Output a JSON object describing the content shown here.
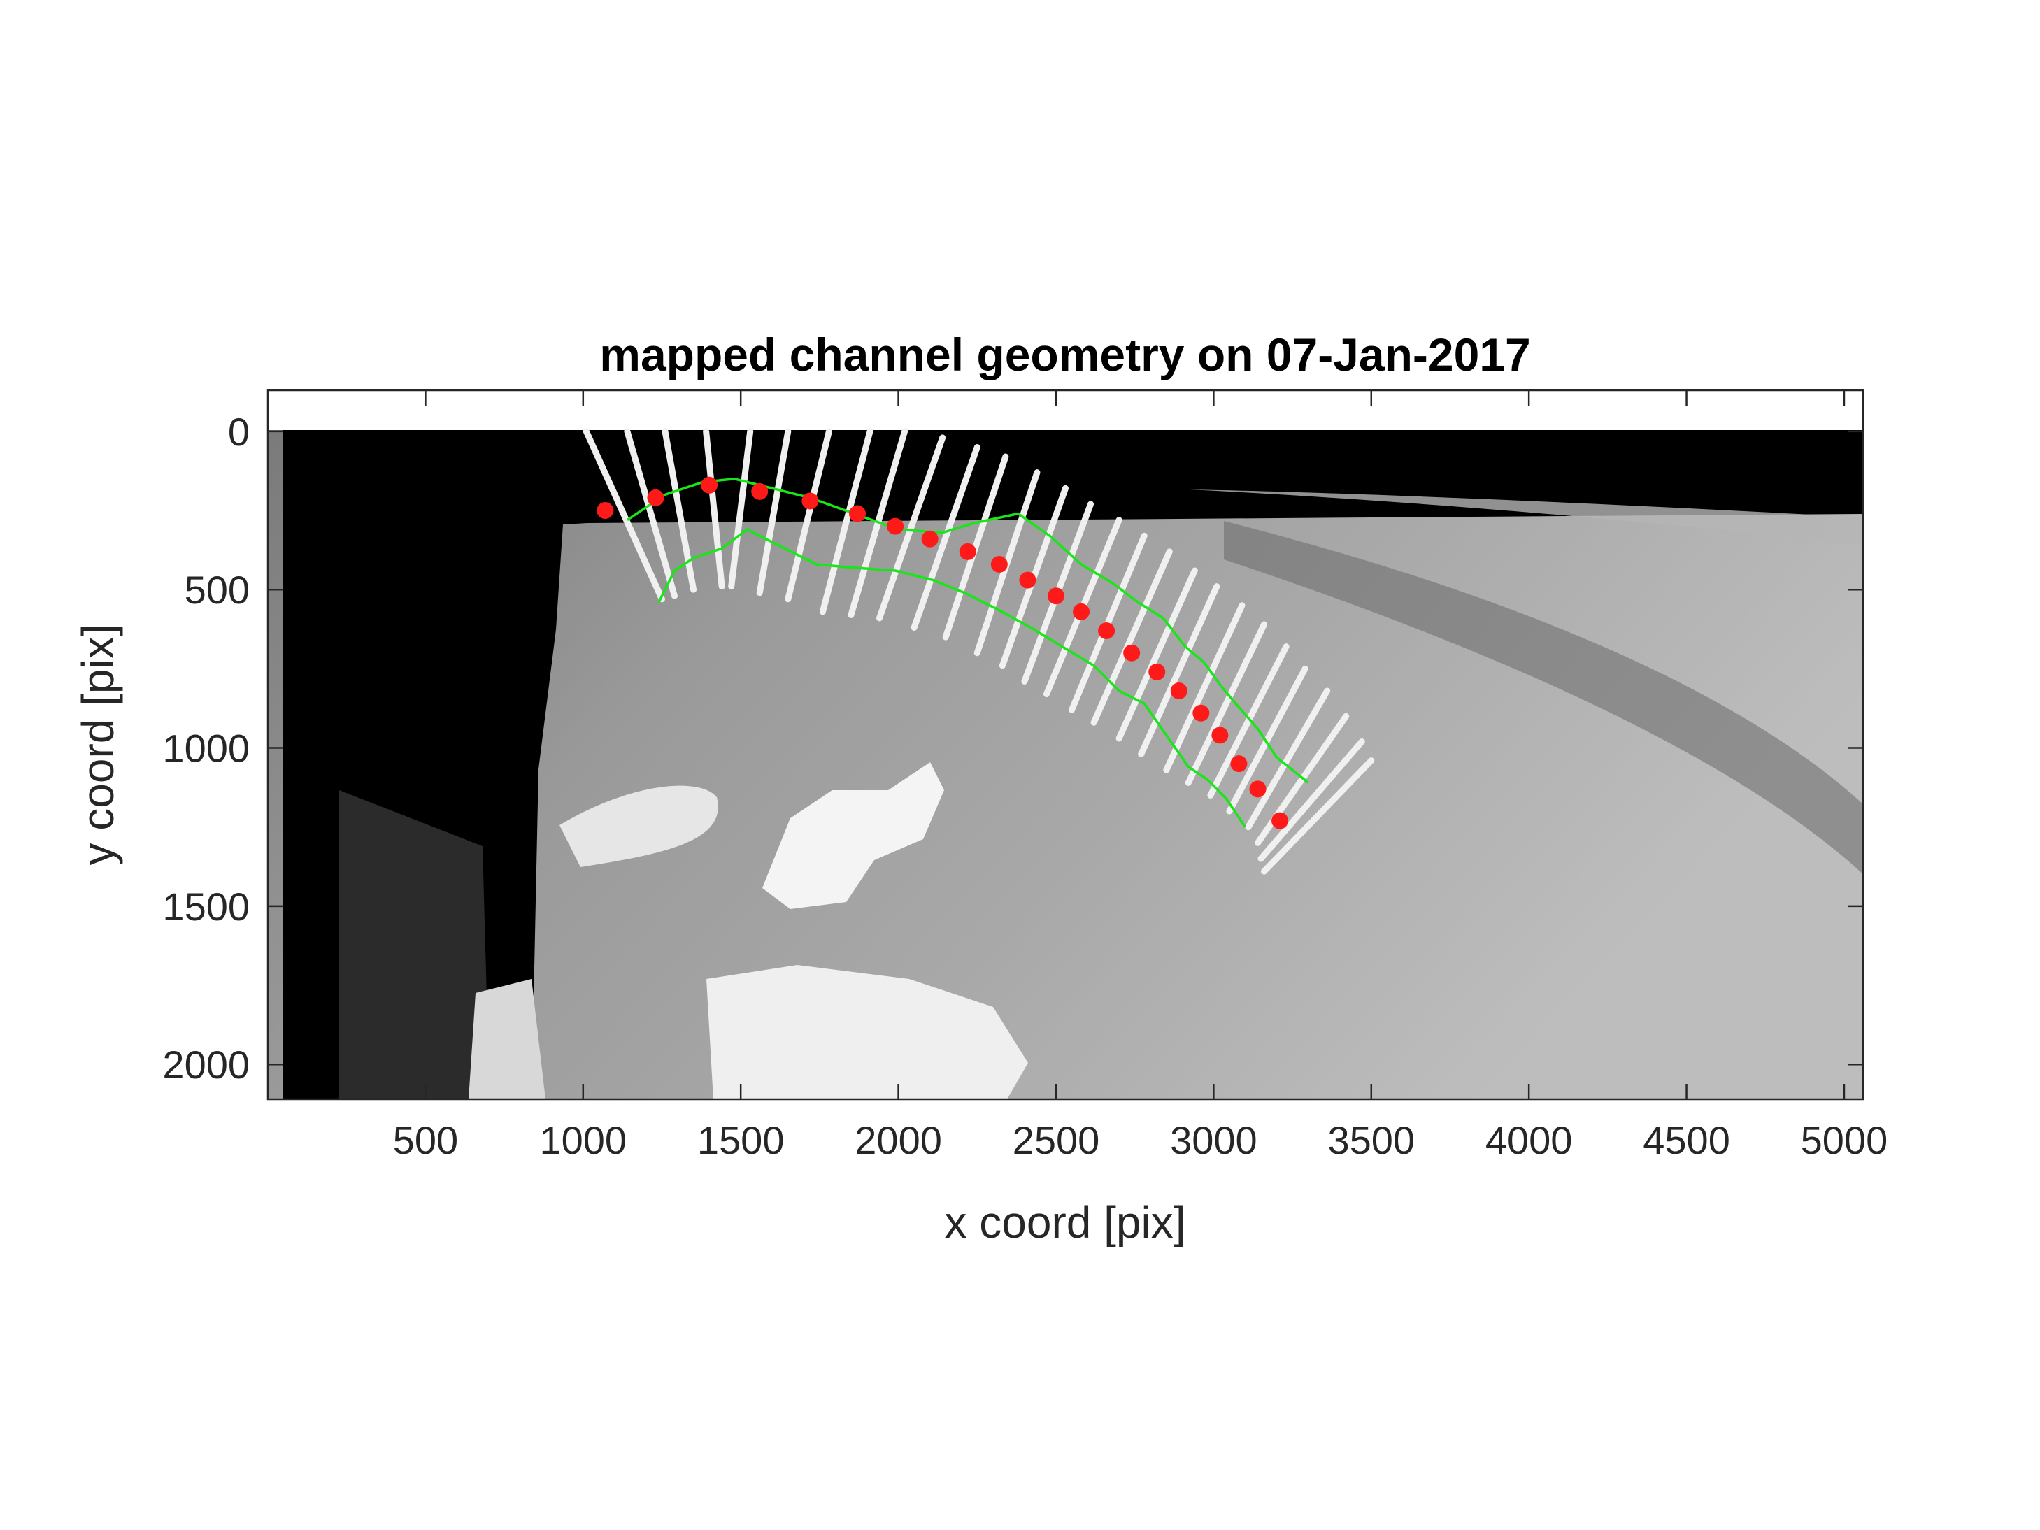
{
  "chart_data": {
    "type": "scatter",
    "title": "mapped channel geometry on 07-Jan-2017",
    "xlabel": "x coord [pix]",
    "ylabel": "y coord [pix]",
    "xlim": [
      0,
      5060
    ],
    "ylim": [
      -130,
      2110
    ],
    "y_reversed": true,
    "grid": false,
    "xticks": [
      500,
      1000,
      1500,
      2000,
      2500,
      3000,
      3500,
      4000,
      4500,
      5000
    ],
    "yticks": [
      0,
      500,
      1000,
      1500,
      2000
    ],
    "background": "grayscale velocity image",
    "colors": {
      "centerline": "#ff1a1a",
      "banks": "#19e619",
      "transects": "#f0f0f0"
    },
    "centerline": {
      "x": [
        1070,
        1230,
        1400,
        1560,
        1720,
        1870,
        1990,
        2100,
        2220,
        2320,
        2410,
        2500,
        2580,
        2660,
        2740,
        2820,
        2890,
        2960,
        3020,
        3080,
        3140,
        3210
      ],
      "y": [
        250,
        210,
        170,
        190,
        220,
        260,
        300,
        340,
        380,
        420,
        470,
        520,
        570,
        630,
        700,
        760,
        820,
        890,
        960,
        1050,
        1130,
        1230
      ]
    },
    "left_bank": {
      "x": [
        1140,
        1260,
        1380,
        1480,
        1600,
        1720,
        1860,
        2000,
        2140,
        2240,
        2380,
        2480,
        2580,
        2680,
        2760,
        2840,
        2910,
        2970,
        3020,
        3070,
        3140,
        3200,
        3300
      ],
      "y": [
        280,
        200,
        160,
        150,
        180,
        210,
        260,
        310,
        320,
        290,
        260,
        330,
        420,
        480,
        540,
        590,
        680,
        730,
        800,
        860,
        940,
        1030,
        1110
      ]
    },
    "right_bank": {
      "x": [
        1240,
        1290,
        1350,
        1440,
        1520,
        1620,
        1740,
        1850,
        1990,
        2110,
        2210,
        2310,
        2420,
        2520,
        2620,
        2700,
        2780,
        2850,
        2920,
        2980,
        3040,
        3100
      ],
      "y": [
        540,
        440,
        400,
        370,
        310,
        360,
        420,
        430,
        440,
        470,
        510,
        560,
        620,
        680,
        740,
        820,
        860,
        960,
        1060,
        1100,
        1160,
        1250
      ]
    },
    "transects": [
      {
        "x1": 1010,
        "y1": 0,
        "x2": 1250,
        "y2": 530
      },
      {
        "x1": 1140,
        "y1": 0,
        "x2": 1290,
        "y2": 520
      },
      {
        "x1": 1260,
        "y1": 0,
        "x2": 1350,
        "y2": 500
      },
      {
        "x1": 1390,
        "y1": 0,
        "x2": 1440,
        "y2": 490
      },
      {
        "x1": 1530,
        "y1": 0,
        "x2": 1470,
        "y2": 490
      },
      {
        "x1": 1650,
        "y1": 0,
        "x2": 1560,
        "y2": 510
      },
      {
        "x1": 1780,
        "y1": 0,
        "x2": 1650,
        "y2": 530
      },
      {
        "x1": 1910,
        "y1": 0,
        "x2": 1760,
        "y2": 570
      },
      {
        "x1": 2020,
        "y1": 0,
        "x2": 1850,
        "y2": 580
      },
      {
        "x1": 2140,
        "y1": 20,
        "x2": 1940,
        "y2": 590
      },
      {
        "x1": 2250,
        "y1": 50,
        "x2": 2050,
        "y2": 620
      },
      {
        "x1": 2340,
        "y1": 80,
        "x2": 2150,
        "y2": 650
      },
      {
        "x1": 2440,
        "y1": 130,
        "x2": 2250,
        "y2": 700
      },
      {
        "x1": 2530,
        "y1": 180,
        "x2": 2330,
        "y2": 740
      },
      {
        "x1": 2610,
        "y1": 230,
        "x2": 2400,
        "y2": 790
      },
      {
        "x1": 2700,
        "y1": 280,
        "x2": 2470,
        "y2": 830
      },
      {
        "x1": 2780,
        "y1": 330,
        "x2": 2550,
        "y2": 880
      },
      {
        "x1": 2860,
        "y1": 380,
        "x2": 2620,
        "y2": 920
      },
      {
        "x1": 2940,
        "y1": 440,
        "x2": 2700,
        "y2": 970
      },
      {
        "x1": 3010,
        "y1": 490,
        "x2": 2770,
        "y2": 1020
      },
      {
        "x1": 3090,
        "y1": 550,
        "x2": 2850,
        "y2": 1070
      },
      {
        "x1": 3160,
        "y1": 610,
        "x2": 2920,
        "y2": 1110
      },
      {
        "x1": 3230,
        "y1": 680,
        "x2": 2990,
        "y2": 1150
      },
      {
        "x1": 3290,
        "y1": 750,
        "x2": 3050,
        "y2": 1200
      },
      {
        "x1": 3360,
        "y1": 820,
        "x2": 3110,
        "y2": 1250
      },
      {
        "x1": 3420,
        "y1": 900,
        "x2": 3140,
        "y2": 1300
      },
      {
        "x1": 3470,
        "y1": 980,
        "x2": 3150,
        "y2": 1350
      },
      {
        "x1": 3500,
        "y1": 1040,
        "x2": 3160,
        "y2": 1390
      }
    ]
  }
}
